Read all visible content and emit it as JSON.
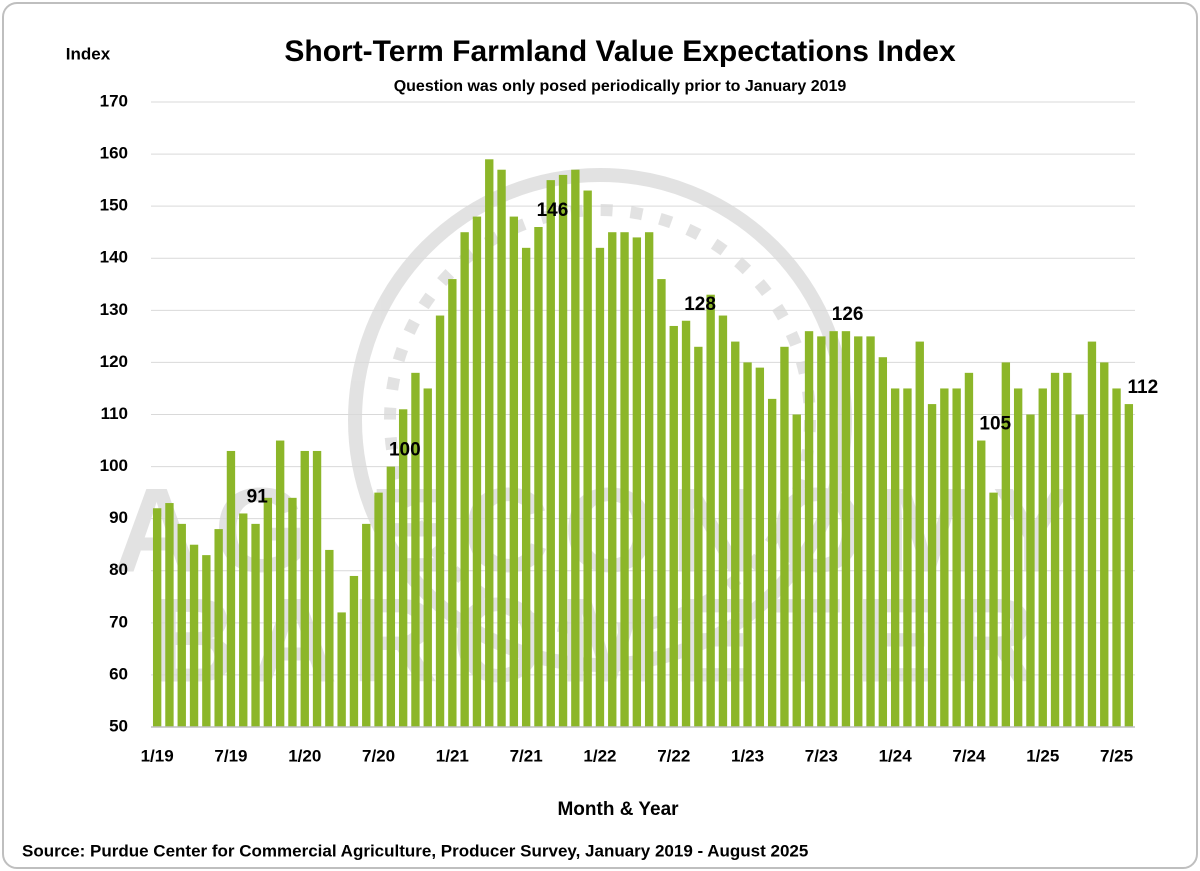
{
  "chart_data": {
    "type": "bar",
    "title": "Short-Term Farmland Value Expectations Index",
    "subtitle": "Question was only posed periodically prior to January 2019",
    "y_label": "Index",
    "x_label": "Month & Year",
    "source": "Source: Purdue Center for Commercial Agriculture, Producer Survey, January 2019 - August 2025",
    "watermark": [
      "AG ECONOMY",
      "BAROMETER"
    ],
    "color": "#8cb629",
    "grid": true,
    "ylim": [
      50,
      170
    ],
    "yticks": [
      50,
      60,
      70,
      80,
      90,
      100,
      110,
      120,
      130,
      140,
      150,
      160,
      170
    ],
    "categories": [
      "1/19",
      null,
      null,
      null,
      null,
      null,
      "7/19",
      null,
      null,
      null,
      null,
      null,
      "1/20",
      null,
      null,
      null,
      null,
      null,
      "7/20",
      null,
      null,
      null,
      null,
      null,
      "1/21",
      null,
      null,
      null,
      null,
      null,
      "7/21",
      null,
      null,
      null,
      null,
      null,
      "1/22",
      null,
      null,
      null,
      null,
      null,
      "7/22",
      null,
      null,
      null,
      null,
      null,
      "1/23",
      null,
      null,
      null,
      null,
      null,
      "7/23",
      null,
      null,
      null,
      null,
      null,
      "1/24",
      null,
      null,
      null,
      null,
      null,
      "7/24",
      null,
      null,
      null,
      null,
      null,
      "1/25",
      null,
      null,
      null,
      null,
      null,
      "7/25",
      null
    ],
    "values": [
      92,
      93,
      89,
      85,
      83,
      88,
      103,
      91,
      89,
      94,
      105,
      94,
      103,
      103,
      84,
      72,
      79,
      89,
      95,
      100,
      111,
      118,
      115,
      129,
      136,
      145,
      148,
      159,
      157,
      148,
      142,
      146,
      155,
      156,
      157,
      153,
      142,
      145,
      145,
      144,
      145,
      136,
      127,
      128,
      123,
      133,
      129,
      124,
      120,
      119,
      113,
      123,
      110,
      126,
      125,
      126,
      126,
      125,
      125,
      121,
      115,
      115,
      124,
      112,
      115,
      115,
      118,
      105,
      95,
      120,
      115,
      110,
      115,
      118,
      118,
      110,
      124,
      120,
      115,
      112
    ],
    "value_labels": [
      null,
      null,
      null,
      null,
      null,
      null,
      null,
      "91",
      null,
      null,
      null,
      null,
      null,
      null,
      null,
      null,
      null,
      null,
      null,
      "100",
      null,
      null,
      null,
      null,
      null,
      null,
      null,
      null,
      null,
      null,
      null,
      "146",
      null,
      null,
      null,
      null,
      null,
      null,
      null,
      null,
      null,
      null,
      null,
      "128",
      null,
      null,
      null,
      null,
      null,
      null,
      null,
      null,
      null,
      null,
      null,
      "126",
      null,
      null,
      null,
      null,
      null,
      null,
      null,
      null,
      null,
      null,
      null,
      "105",
      null,
      null,
      null,
      null,
      null,
      null,
      null,
      null,
      null,
      null,
      null,
      "112"
    ]
  }
}
